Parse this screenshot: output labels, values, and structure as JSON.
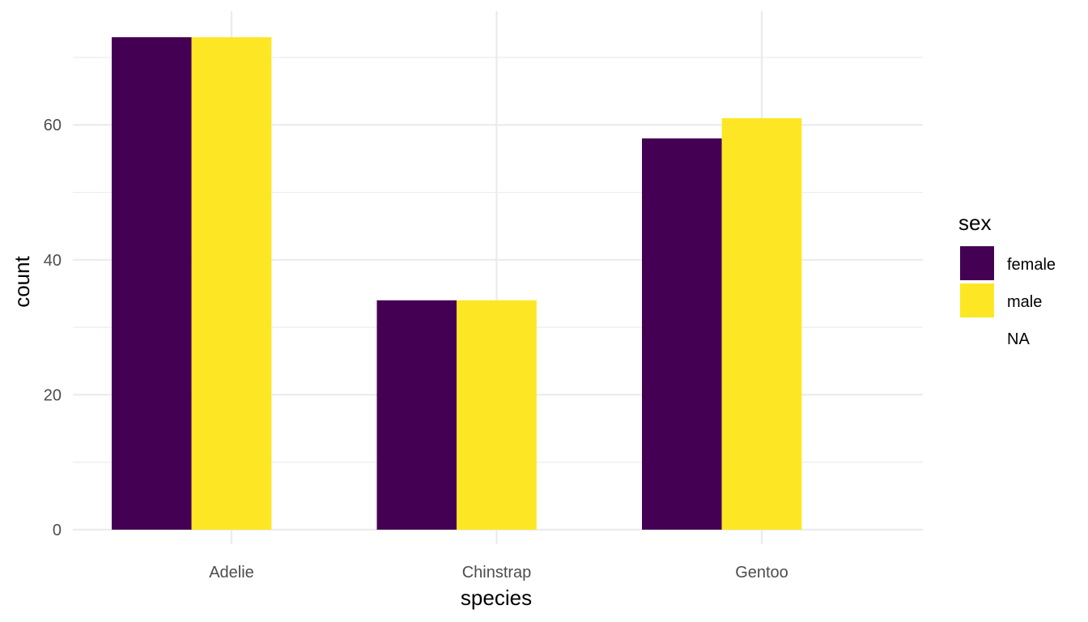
{
  "chart_data": {
    "type": "bar",
    "title": "",
    "xlabel": "species",
    "ylabel": "count",
    "categories": [
      "Adelie",
      "Chinstrap",
      "Gentoo"
    ],
    "series": [
      {
        "name": "female",
        "values": [
          73,
          34,
          58
        ],
        "color": "#440154"
      },
      {
        "name": "male",
        "values": [
          73,
          34,
          61
        ],
        "color": "#FDE725"
      },
      {
        "name": "NA",
        "values": [
          0,
          0,
          0
        ],
        "color": "#ffffff"
      }
    ],
    "ylim": [
      0,
      76.6
    ],
    "yticks": [
      0,
      20,
      40,
      60
    ],
    "grid": true,
    "legend": {
      "title": "sex",
      "position": "right"
    }
  }
}
